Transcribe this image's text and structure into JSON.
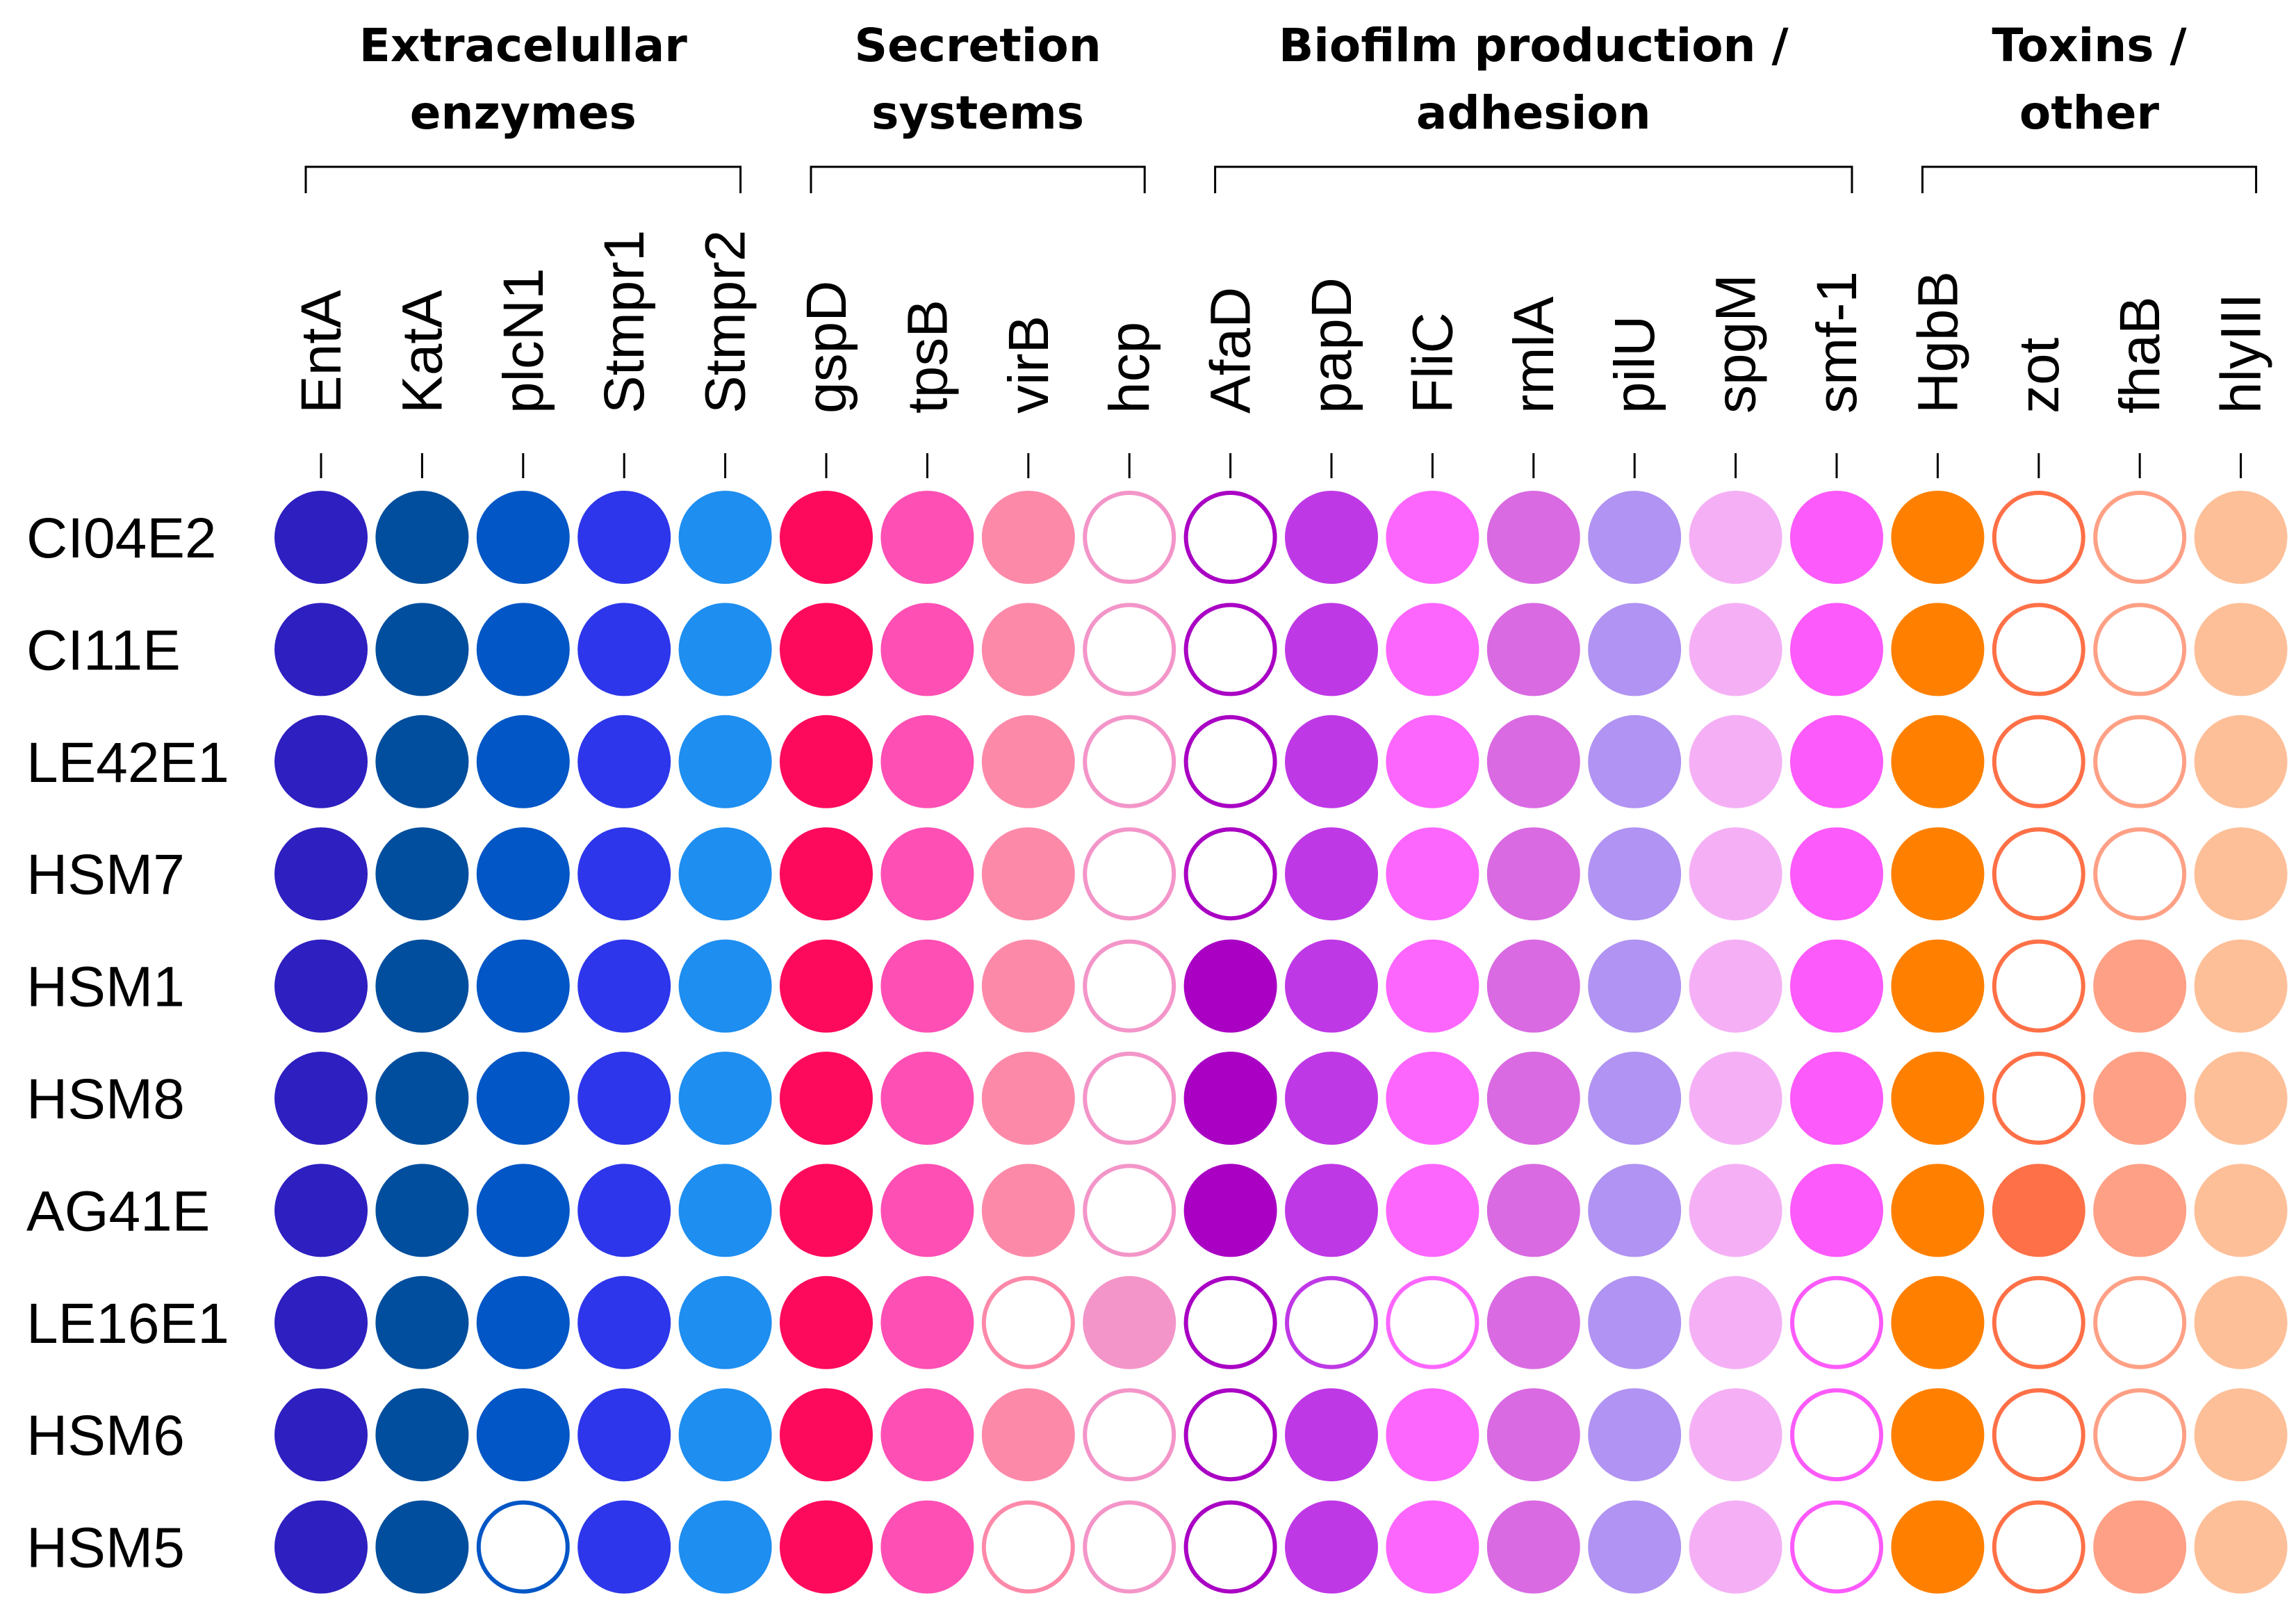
{
  "chart_data": {
    "type": "dot-matrix",
    "groups": [
      {
        "label_lines": [
          "Extracelullar",
          "enzymes"
        ],
        "genes": [
          "EntA",
          "KatA",
          "plcN1",
          "Stmpr1",
          "Stmpr2"
        ]
      },
      {
        "label_lines": [
          "Secretion",
          "systems"
        ],
        "genes": [
          "gspD",
          "tpsB",
          "virB",
          "hcp"
        ]
      },
      {
        "label_lines": [
          "Biofilm production /",
          "adhesion"
        ],
        "genes": [
          "AfaD",
          "papD",
          "FliC",
          "rmlA",
          "pilU",
          "spgM",
          "smf-1"
        ]
      },
      {
        "label_lines": [
          "Toxins /",
          "other"
        ],
        "genes": [
          "HgbB",
          "zot",
          "fhaB",
          "hlyIII"
        ]
      }
    ],
    "genes": [
      "EntA",
      "KatA",
      "plcN1",
      "Stmpr1",
      "Stmpr2",
      "gspD",
      "tpsB",
      "virB",
      "hcp",
      "AfaD",
      "papD",
      "FliC",
      "rmlA",
      "pilU",
      "spgM",
      "smf-1",
      "HgbB",
      "zot",
      "fhaB",
      "hlyIII"
    ],
    "gene_colors": [
      "#2e1fc0",
      "#014e9e",
      "#0256c6",
      "#2d36ea",
      "#1e8ef0",
      "#fe0a5c",
      "#fe4fb4",
      "#fd89a9",
      "#f395c9",
      "#a900c4",
      "#bf38e6",
      "#fc66fd",
      "#d96ae2",
      "#b093f2",
      "#f5b0f5",
      "#fc5afa",
      "#ff8000",
      "#fe7047",
      "#fea085",
      "#fdbf98"
    ],
    "strains": [
      "CI04E2",
      "CI11E",
      "LE42E1",
      "HSM7",
      "HSM1",
      "HSM8",
      "AG41E",
      "LE16E1",
      "HSM6",
      "HSM5"
    ],
    "presence": [
      [
        1,
        1,
        1,
        1,
        1,
        1,
        1,
        1,
        0,
        0,
        1,
        1,
        1,
        1,
        1,
        1,
        1,
        0,
        0,
        1
      ],
      [
        1,
        1,
        1,
        1,
        1,
        1,
        1,
        1,
        0,
        0,
        1,
        1,
        1,
        1,
        1,
        1,
        1,
        0,
        0,
        1
      ],
      [
        1,
        1,
        1,
        1,
        1,
        1,
        1,
        1,
        0,
        0,
        1,
        1,
        1,
        1,
        1,
        1,
        1,
        0,
        0,
        1
      ],
      [
        1,
        1,
        1,
        1,
        1,
        1,
        1,
        1,
        0,
        0,
        1,
        1,
        1,
        1,
        1,
        1,
        1,
        0,
        0,
        1
      ],
      [
        1,
        1,
        1,
        1,
        1,
        1,
        1,
        1,
        0,
        1,
        1,
        1,
        1,
        1,
        1,
        1,
        1,
        0,
        1,
        1
      ],
      [
        1,
        1,
        1,
        1,
        1,
        1,
        1,
        1,
        0,
        1,
        1,
        1,
        1,
        1,
        1,
        1,
        1,
        0,
        1,
        1
      ],
      [
        1,
        1,
        1,
        1,
        1,
        1,
        1,
        1,
        0,
        1,
        1,
        1,
        1,
        1,
        1,
        1,
        1,
        1,
        1,
        1
      ],
      [
        1,
        1,
        1,
        1,
        1,
        1,
        1,
        0,
        1,
        0,
        0,
        0,
        1,
        1,
        1,
        0,
        1,
        0,
        0,
        1
      ],
      [
        1,
        1,
        1,
        1,
        1,
        1,
        1,
        1,
        0,
        0,
        1,
        1,
        1,
        1,
        1,
        0,
        1,
        0,
        0,
        1
      ],
      [
        1,
        1,
        0,
        1,
        1,
        1,
        1,
        0,
        0,
        0,
        1,
        1,
        1,
        1,
        1,
        0,
        1,
        0,
        1,
        1
      ]
    ]
  }
}
